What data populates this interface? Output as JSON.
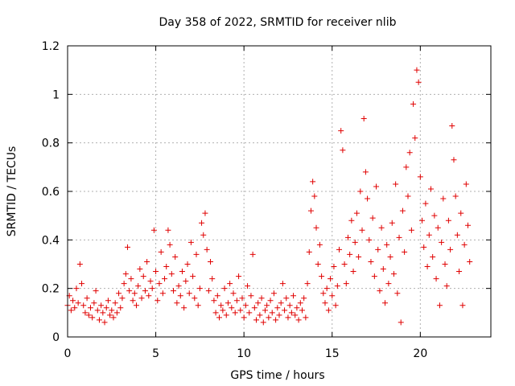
{
  "chart_data": {
    "type": "scatter",
    "title": "Day 358 of 2022, SRMTID for receiver nlib",
    "xlabel": "GPS time / hours",
    "ylabel": "SRMTID / TECUs",
    "xlim": [
      0,
      24
    ],
    "ylim": [
      0,
      1.2
    ],
    "xticks": [
      0,
      5,
      10,
      15,
      20
    ],
    "xtick_labels": [
      "0",
      "5",
      "10",
      "15",
      "20"
    ],
    "yticks": [
      0,
      0.2,
      0.4,
      0.6,
      0.8,
      1.0,
      1.2
    ],
    "ytick_labels": [
      "0",
      "0.2",
      "0.4",
      "0.6",
      "0.8",
      "1",
      "1.2"
    ],
    "grid": true,
    "marker": "+",
    "color": "#e00000",
    "series": [
      {
        "name": "SRMTID",
        "points": [
          [
            0.0,
            0.13
          ],
          [
            0.1,
            0.17
          ],
          [
            0.2,
            0.11
          ],
          [
            0.3,
            0.15
          ],
          [
            0.4,
            0.12
          ],
          [
            0.5,
            0.2
          ],
          [
            0.6,
            0.14
          ],
          [
            0.7,
            0.3
          ],
          [
            0.8,
            0.22
          ],
          [
            0.9,
            0.13
          ],
          [
            1.0,
            0.1
          ],
          [
            1.1,
            0.16
          ],
          [
            1.2,
            0.09
          ],
          [
            1.3,
            0.12
          ],
          [
            1.4,
            0.08
          ],
          [
            1.5,
            0.14
          ],
          [
            1.6,
            0.19
          ],
          [
            1.7,
            0.11
          ],
          [
            1.8,
            0.07
          ],
          [
            1.9,
            0.13
          ],
          [
            2.0,
            0.1
          ],
          [
            2.1,
            0.06
          ],
          [
            2.2,
            0.12
          ],
          [
            2.3,
            0.15
          ],
          [
            2.4,
            0.09
          ],
          [
            2.5,
            0.11
          ],
          [
            2.6,
            0.08
          ],
          [
            2.7,
            0.14
          ],
          [
            2.8,
            0.1
          ],
          [
            2.9,
            0.18
          ],
          [
            3.0,
            0.12
          ],
          [
            3.1,
            0.16
          ],
          [
            3.2,
            0.22
          ],
          [
            3.3,
            0.26
          ],
          [
            3.4,
            0.37
          ],
          [
            3.5,
            0.19
          ],
          [
            3.6,
            0.24
          ],
          [
            3.7,
            0.15
          ],
          [
            3.8,
            0.18
          ],
          [
            3.9,
            0.13
          ],
          [
            4.0,
            0.21
          ],
          [
            4.1,
            0.28
          ],
          [
            4.2,
            0.16
          ],
          [
            4.3,
            0.25
          ],
          [
            4.4,
            0.19
          ],
          [
            4.5,
            0.31
          ],
          [
            4.6,
            0.17
          ],
          [
            4.7,
            0.23
          ],
          [
            4.8,
            0.2
          ],
          [
            4.9,
            0.44
          ],
          [
            5.0,
            0.27
          ],
          [
            5.1,
            0.15
          ],
          [
            5.2,
            0.22
          ],
          [
            5.3,
            0.35
          ],
          [
            5.4,
            0.18
          ],
          [
            5.5,
            0.24
          ],
          [
            5.6,
            0.29
          ],
          [
            5.7,
            0.44
          ],
          [
            5.8,
            0.38
          ],
          [
            5.9,
            0.26
          ],
          [
            6.0,
            0.19
          ],
          [
            6.1,
            0.33
          ],
          [
            6.2,
            0.14
          ],
          [
            6.3,
            0.21
          ],
          [
            6.4,
            0.17
          ],
          [
            6.5,
            0.27
          ],
          [
            6.6,
            0.12
          ],
          [
            6.7,
            0.23
          ],
          [
            6.8,
            0.3
          ],
          [
            6.9,
            0.18
          ],
          [
            7.0,
            0.39
          ],
          [
            7.1,
            0.25
          ],
          [
            7.2,
            0.16
          ],
          [
            7.3,
            0.34
          ],
          [
            7.4,
            0.13
          ],
          [
            7.5,
            0.2
          ],
          [
            7.6,
            0.47
          ],
          [
            7.7,
            0.42
          ],
          [
            7.8,
            0.51
          ],
          [
            7.9,
            0.36
          ],
          [
            8.0,
            0.19
          ],
          [
            8.1,
            0.31
          ],
          [
            8.2,
            0.24
          ],
          [
            8.3,
            0.15
          ],
          [
            8.4,
            0.1
          ],
          [
            8.5,
            0.17
          ],
          [
            8.6,
            0.08
          ],
          [
            8.7,
            0.13
          ],
          [
            8.8,
            0.11
          ],
          [
            8.9,
            0.2
          ],
          [
            9.0,
            0.09
          ],
          [
            9.1,
            0.14
          ],
          [
            9.2,
            0.22
          ],
          [
            9.3,
            0.12
          ],
          [
            9.4,
            0.18
          ],
          [
            9.5,
            0.1
          ],
          [
            9.6,
            0.15
          ],
          [
            9.7,
            0.25
          ],
          [
            9.8,
            0.11
          ],
          [
            9.9,
            0.16
          ],
          [
            10.0,
            0.08
          ],
          [
            10.1,
            0.13
          ],
          [
            10.2,
            0.21
          ],
          [
            10.3,
            0.1
          ],
          [
            10.4,
            0.17
          ],
          [
            10.5,
            0.34
          ],
          [
            10.6,
            0.12
          ],
          [
            10.7,
            0.07
          ],
          [
            10.8,
            0.14
          ],
          [
            10.9,
            0.09
          ],
          [
            11.0,
            0.16
          ],
          [
            11.1,
            0.06
          ],
          [
            11.2,
            0.11
          ],
          [
            11.3,
            0.13
          ],
          [
            11.4,
            0.08
          ],
          [
            11.5,
            0.15
          ],
          [
            11.6,
            0.1
          ],
          [
            11.7,
            0.18
          ],
          [
            11.8,
            0.07
          ],
          [
            11.9,
            0.12
          ],
          [
            12.0,
            0.09
          ],
          [
            12.1,
            0.14
          ],
          [
            12.2,
            0.22
          ],
          [
            12.3,
            0.11
          ],
          [
            12.4,
            0.16
          ],
          [
            12.5,
            0.08
          ],
          [
            12.6,
            0.13
          ],
          [
            12.7,
            0.1
          ],
          [
            12.8,
            0.17
          ],
          [
            12.9,
            0.09
          ],
          [
            13.0,
            0.12
          ],
          [
            13.1,
            0.07
          ],
          [
            13.2,
            0.14
          ],
          [
            13.3,
            0.11
          ],
          [
            13.4,
            0.16
          ],
          [
            13.5,
            0.08
          ],
          [
            13.6,
            0.22
          ],
          [
            13.7,
            0.35
          ],
          [
            13.8,
            0.52
          ],
          [
            13.9,
            0.64
          ],
          [
            14.0,
            0.58
          ],
          [
            14.1,
            0.45
          ],
          [
            14.2,
            0.3
          ],
          [
            14.3,
            0.38
          ],
          [
            14.4,
            0.25
          ],
          [
            14.5,
            0.18
          ],
          [
            14.6,
            0.14
          ],
          [
            14.7,
            0.2
          ],
          [
            14.8,
            0.11
          ],
          [
            14.9,
            0.24
          ],
          [
            15.0,
            0.17
          ],
          [
            15.1,
            0.29
          ],
          [
            15.2,
            0.13
          ],
          [
            15.3,
            0.21
          ],
          [
            15.4,
            0.36
          ],
          [
            15.5,
            0.85
          ],
          [
            15.6,
            0.77
          ],
          [
            15.7,
            0.3
          ],
          [
            15.8,
            0.22
          ],
          [
            15.9,
            0.41
          ],
          [
            16.0,
            0.34
          ],
          [
            16.1,
            0.48
          ],
          [
            16.2,
            0.27
          ],
          [
            16.3,
            0.39
          ],
          [
            16.4,
            0.51
          ],
          [
            16.5,
            0.33
          ],
          [
            16.6,
            0.6
          ],
          [
            16.7,
            0.44
          ],
          [
            16.8,
            0.9
          ],
          [
            16.9,
            0.68
          ],
          [
            17.0,
            0.57
          ],
          [
            17.1,
            0.4
          ],
          [
            17.2,
            0.31
          ],
          [
            17.3,
            0.49
          ],
          [
            17.4,
            0.25
          ],
          [
            17.5,
            0.62
          ],
          [
            17.6,
            0.36
          ],
          [
            17.7,
            0.19
          ],
          [
            17.8,
            0.45
          ],
          [
            17.9,
            0.28
          ],
          [
            18.0,
            0.14
          ],
          [
            18.1,
            0.38
          ],
          [
            18.2,
            0.22
          ],
          [
            18.3,
            0.33
          ],
          [
            18.4,
            0.47
          ],
          [
            18.5,
            0.26
          ],
          [
            18.6,
            0.63
          ],
          [
            18.7,
            0.18
          ],
          [
            18.8,
            0.41
          ],
          [
            18.9,
            0.06
          ],
          [
            19.0,
            0.52
          ],
          [
            19.1,
            0.35
          ],
          [
            19.2,
            0.7
          ],
          [
            19.3,
            0.58
          ],
          [
            19.4,
            0.76
          ],
          [
            19.5,
            0.44
          ],
          [
            19.6,
            0.96
          ],
          [
            19.7,
            0.82
          ],
          [
            19.8,
            1.1
          ],
          [
            19.9,
            1.05
          ],
          [
            20.0,
            0.66
          ],
          [
            20.1,
            0.48
          ],
          [
            20.2,
            0.37
          ],
          [
            20.3,
            0.55
          ],
          [
            20.4,
            0.29
          ],
          [
            20.5,
            0.42
          ],
          [
            20.6,
            0.61
          ],
          [
            20.7,
            0.33
          ],
          [
            20.8,
            0.5
          ],
          [
            20.9,
            0.24
          ],
          [
            21.0,
            0.45
          ],
          [
            21.1,
            0.13
          ],
          [
            21.2,
            0.39
          ],
          [
            21.3,
            0.57
          ],
          [
            21.4,
            0.3
          ],
          [
            21.5,
            0.21
          ],
          [
            21.6,
            0.48
          ],
          [
            21.7,
            0.36
          ],
          [
            21.8,
            0.87
          ],
          [
            21.9,
            0.73
          ],
          [
            22.0,
            0.58
          ],
          [
            22.1,
            0.42
          ],
          [
            22.2,
            0.27
          ],
          [
            22.3,
            0.51
          ],
          [
            22.4,
            0.13
          ],
          [
            22.5,
            0.38
          ],
          [
            22.6,
            0.63
          ],
          [
            22.7,
            0.46
          ],
          [
            22.8,
            0.31
          ]
        ]
      }
    ]
  }
}
